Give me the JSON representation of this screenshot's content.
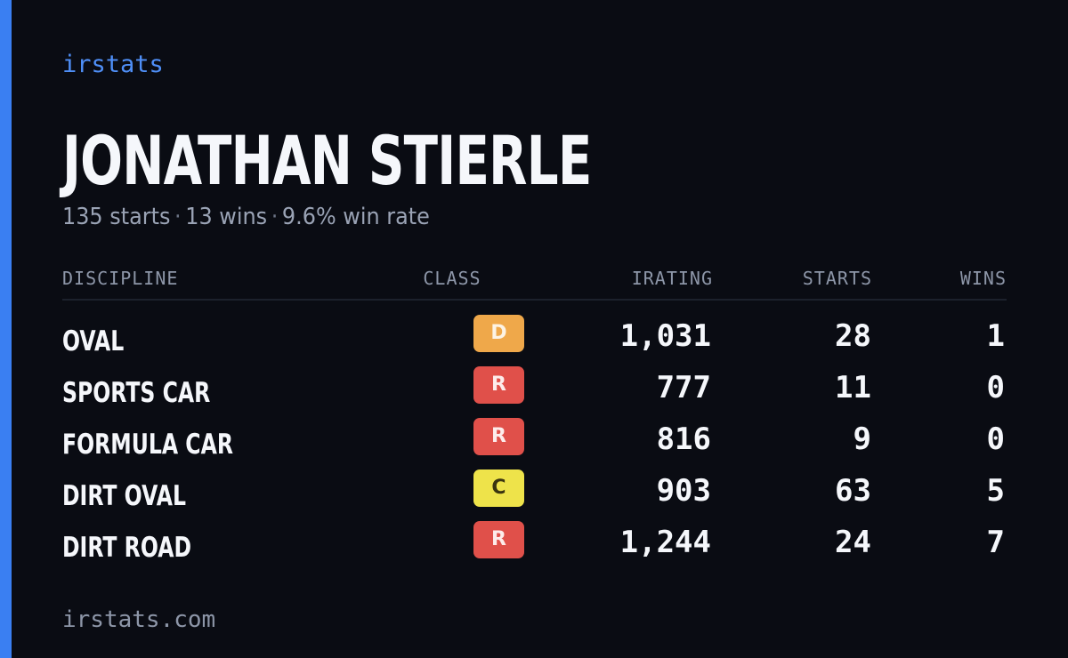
{
  "brand": {
    "name": "irstats",
    "accent_color": "#3a7ff2"
  },
  "player": {
    "name": "JONATHAN STIERLE",
    "starts_text": "135 starts",
    "wins_text": "13 wins",
    "win_rate_text": "9.6% win rate",
    "separator": "·"
  },
  "table": {
    "headers": {
      "discipline": "DISCIPLINE",
      "class": "CLASS",
      "irating": "IRATING",
      "starts": "STARTS",
      "wins": "WINS"
    },
    "rows": [
      {
        "discipline": "OVAL",
        "class": "D",
        "class_color": "#efa84a",
        "class_text_color": "#fdf3e4",
        "irating": "1,031",
        "starts": "28",
        "wins": "1"
      },
      {
        "discipline": "SPORTS CAR",
        "class": "R",
        "class_color": "#e0504a",
        "class_text_color": "#fdeceb",
        "irating": "777",
        "starts": "11",
        "wins": "0"
      },
      {
        "discipline": "FORMULA CAR",
        "class": "R",
        "class_color": "#e0504a",
        "class_text_color": "#fdeceb",
        "irating": "816",
        "starts": "9",
        "wins": "0"
      },
      {
        "discipline": "DIRT OVAL",
        "class": "C",
        "class_color": "#eee34a",
        "class_text_color": "#3a3410",
        "irating": "903",
        "starts": "63",
        "wins": "5"
      },
      {
        "discipline": "DIRT ROAD",
        "class": "R",
        "class_color": "#e0504a",
        "class_text_color": "#fdeceb",
        "irating": "1,244",
        "starts": "24",
        "wins": "7"
      }
    ]
  },
  "footer": {
    "url": "irstats.com"
  }
}
